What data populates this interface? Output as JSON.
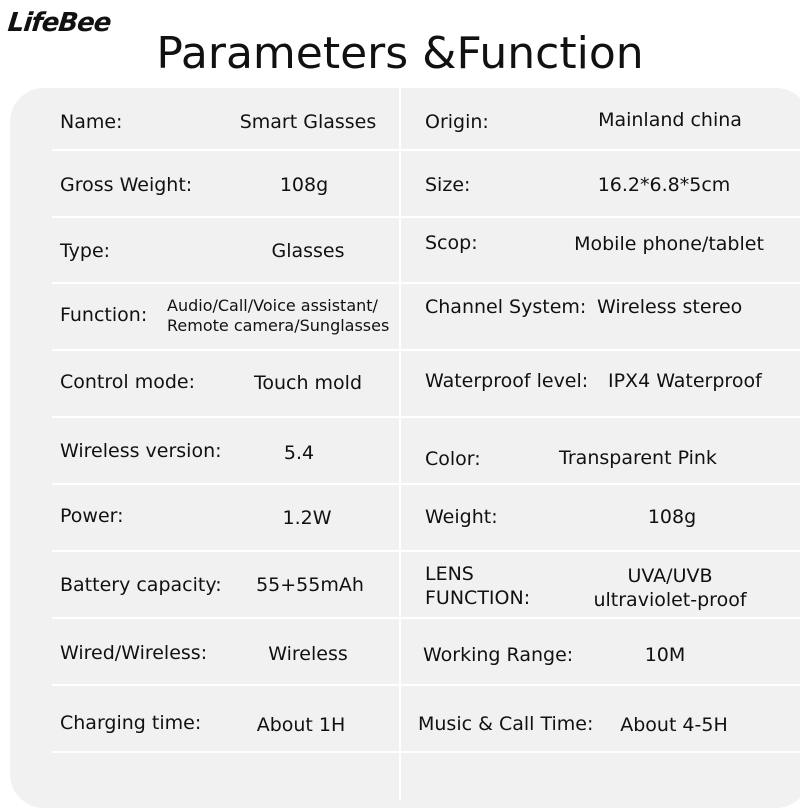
{
  "brand": "LifeBee",
  "title": "Parameters &Function",
  "rows": [
    {
      "left": {
        "label": "Name:",
        "value": "Smart Glasses"
      },
      "right": {
        "label": "Origin:",
        "value": "Mainland china"
      }
    },
    {
      "left": {
        "label": "Gross Weight:",
        "value": "108g"
      },
      "right": {
        "label": "Size:",
        "value": "16.2*6.8*5cm"
      }
    },
    {
      "left": {
        "label": "Type:",
        "value": "Glasses"
      },
      "right": {
        "label": "Scop:",
        "value": "Mobile phone/tablet"
      }
    },
    {
      "left": {
        "label": "Function:",
        "value_line1": "Audio/Call/Voice assistant/",
        "value_line2": "Remote camera/Sunglasses"
      },
      "right": {
        "label": "Channel System:",
        "value": "Wireless stereo"
      }
    },
    {
      "left": {
        "label": "Control mode:",
        "value": "Touch mold"
      },
      "right": {
        "label": "Waterproof level:",
        "value": "IPX4 Waterproof"
      }
    },
    {
      "left": {
        "label": "Wireless version:",
        "value": "5.4"
      },
      "right": {
        "label": "Color:",
        "value": "Transparent Pink"
      }
    },
    {
      "left": {
        "label": "Power:",
        "value": "1.2W"
      },
      "right": {
        "label": "Weight:",
        "value": "108g"
      }
    },
    {
      "left": {
        "label": "Battery capacity:",
        "value": "55+55mAh"
      },
      "right": {
        "label_line1": "LENS",
        "label_line2": "FUNCTION:",
        "value_line1": "UVA/UVB",
        "value_line2": "ultraviolet-proof"
      }
    },
    {
      "left": {
        "label": "Wired/Wireless:",
        "value": "Wireless"
      },
      "right": {
        "label": "Working Range:",
        "value": "10M"
      }
    },
    {
      "left": {
        "label": "Charging time:",
        "value": "About 1H"
      },
      "right": {
        "label": "Music & Call Time:",
        "value": "About 4-5H"
      }
    }
  ]
}
